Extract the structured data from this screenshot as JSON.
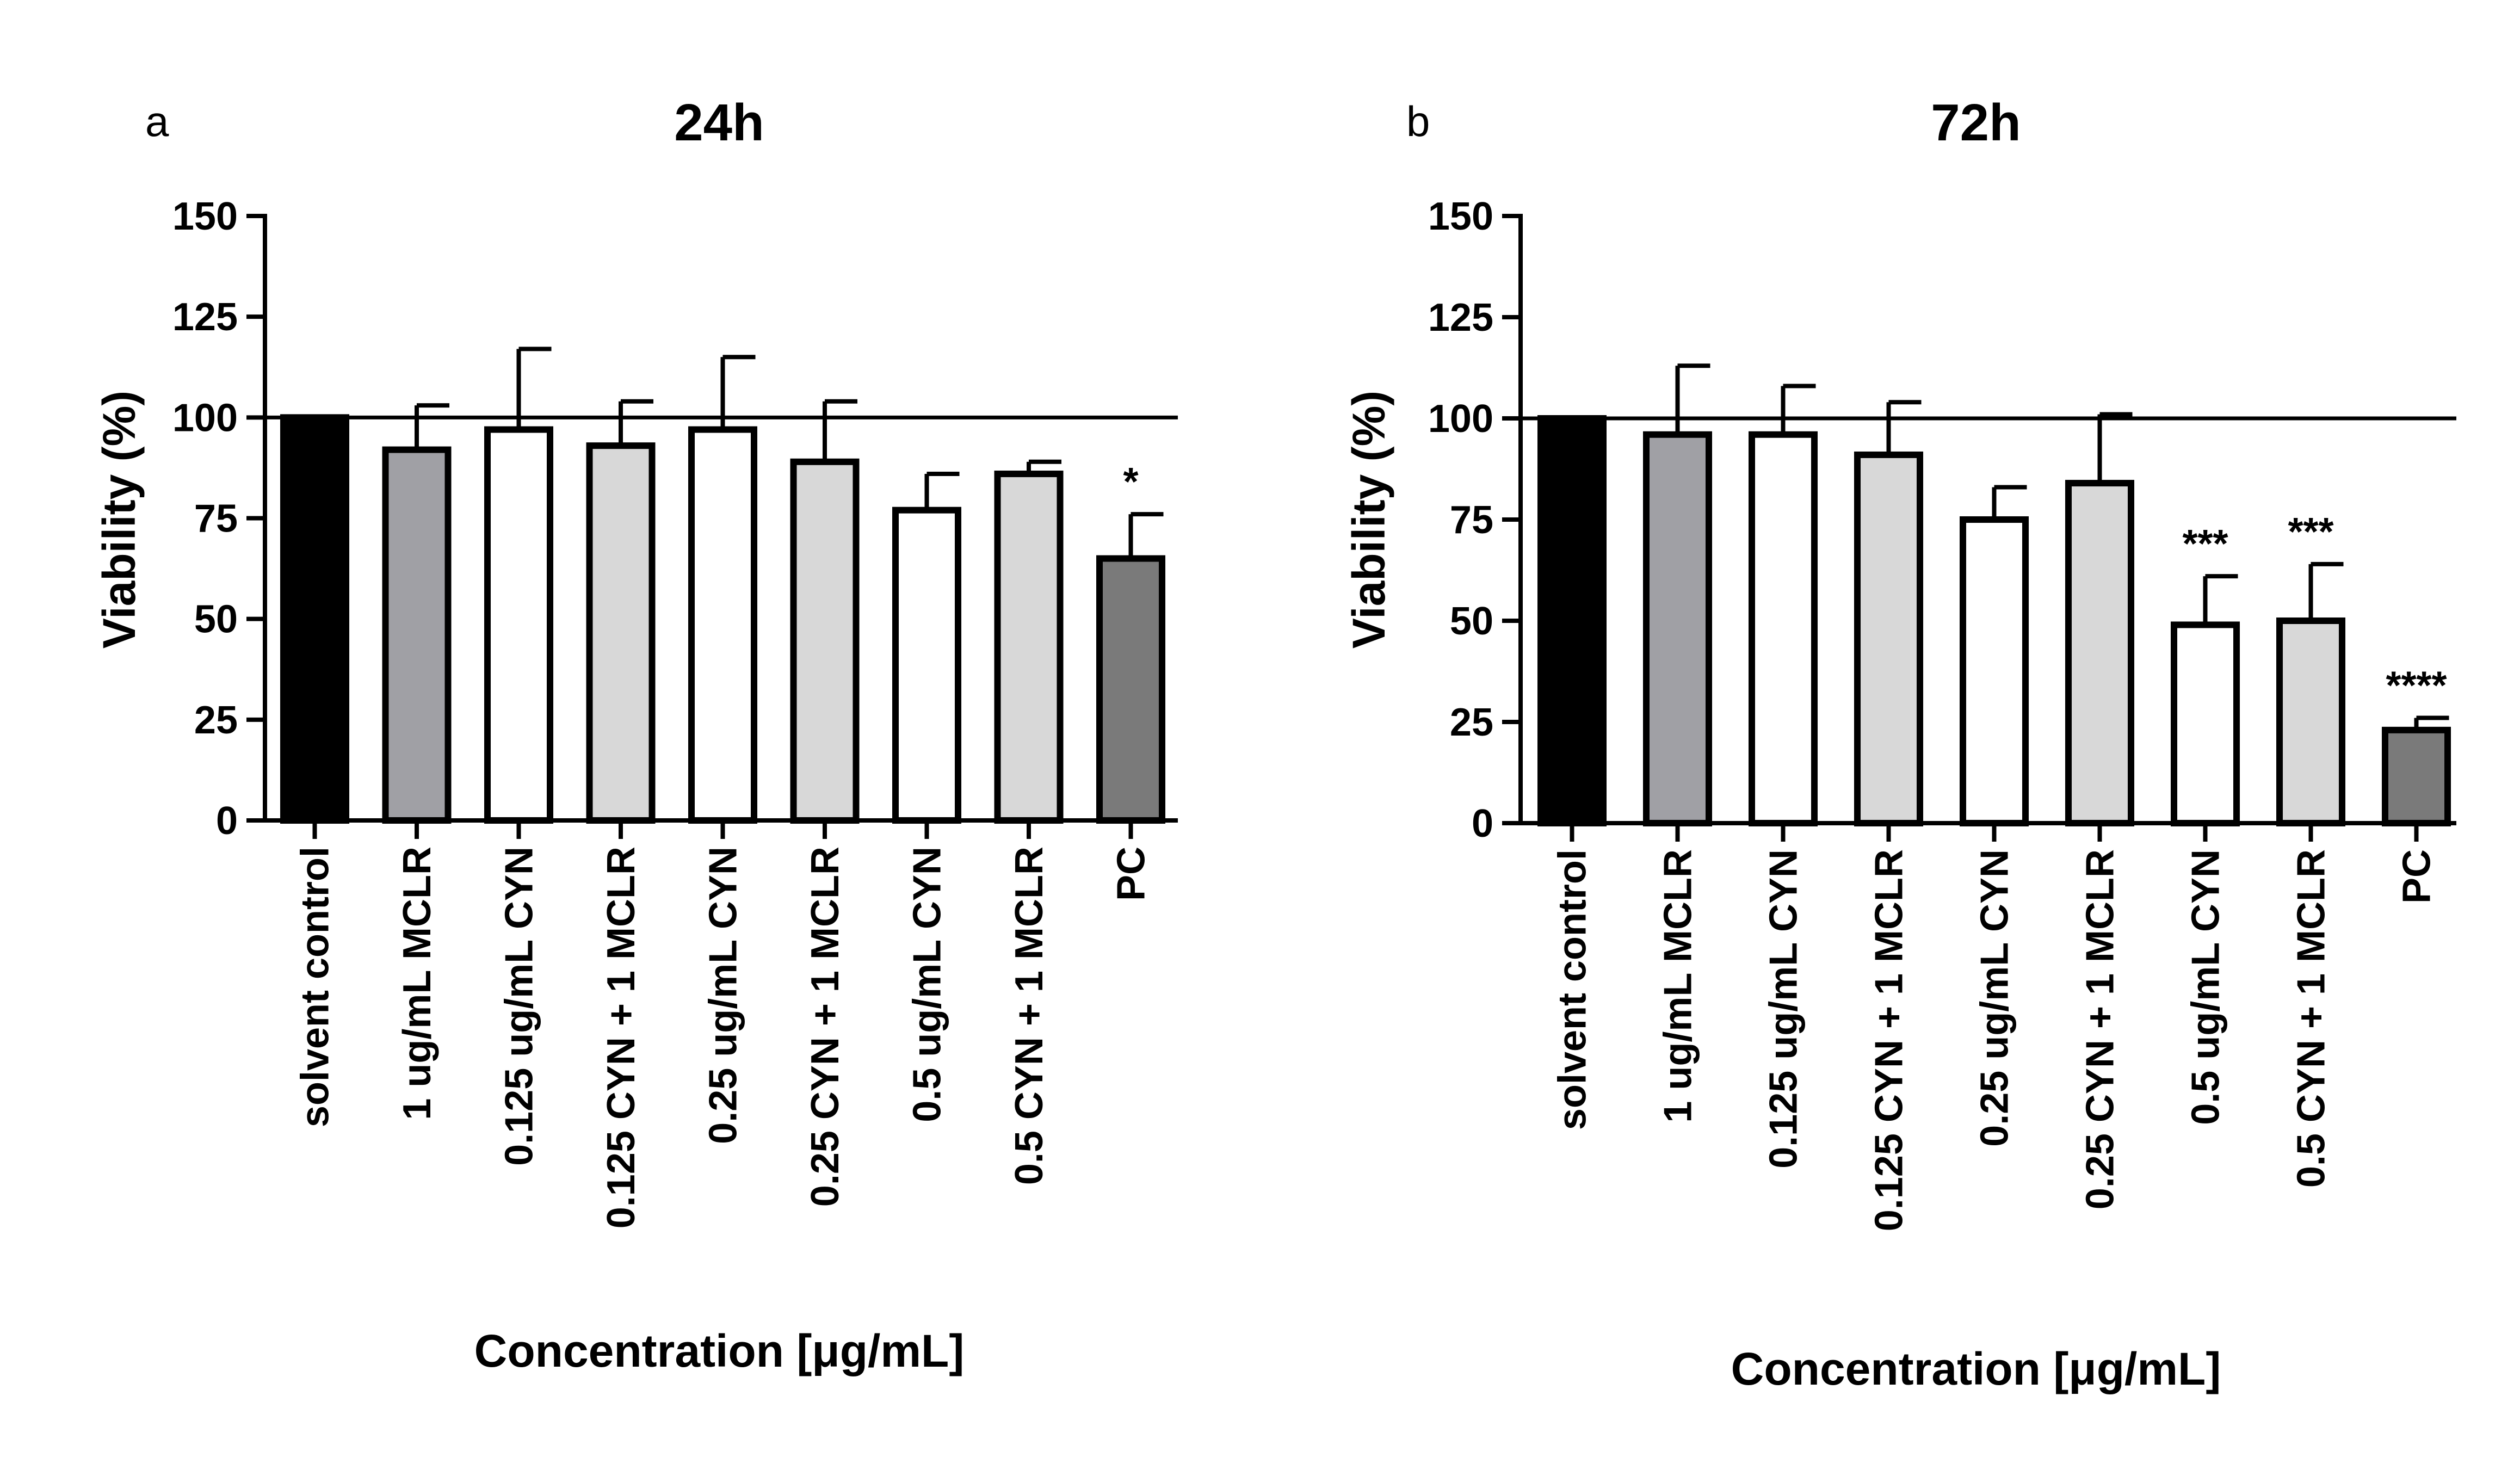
{
  "chart_data": [
    {
      "type": "bar",
      "panel_label": "a",
      "title": "24h",
      "xlabel": "Concentration [μg/mL]",
      "ylabel": "Viability (%)",
      "ylim": [
        0,
        150
      ],
      "yticks": [
        0,
        25,
        50,
        75,
        100,
        125,
        150
      ],
      "reference_line": 100,
      "grid": false,
      "categories": [
        "solvent control",
        "1 ug/mL MCLR",
        "0.125 ug/mL CYN",
        "0.125 CYN + 1 MCLR",
        "0.25 ug/mL CYN",
        "0.25 CYN + 1 MCLR",
        "0.5 ug/mL CYN",
        "0.5 CYN + 1 MCLR",
        "PC"
      ],
      "values": [
        100,
        92,
        97,
        93,
        97,
        89,
        77,
        86,
        65
      ],
      "errors": [
        0,
        11,
        20,
        11,
        18,
        15,
        9,
        3,
        11
      ],
      "significance": [
        "",
        "",
        "",
        "",
        "",
        "",
        "",
        "",
        "*"
      ],
      "colors": [
        "#000000",
        "#a0a0a5",
        "#ffffff",
        "#d8d8d8",
        "#ffffff",
        "#d8d8d8",
        "#ffffff",
        "#d8d8d8",
        "#7a7a7a"
      ]
    },
    {
      "type": "bar",
      "panel_label": "b",
      "title": "72h",
      "xlabel": "Concentration [μg/mL]",
      "ylabel": "Viability (%)",
      "ylim": [
        0,
        150
      ],
      "yticks": [
        0,
        25,
        50,
        75,
        100,
        125,
        150
      ],
      "reference_line": 100,
      "grid": false,
      "categories": [
        "solvent control",
        "1 ug/mL MCLR",
        "0.125 ug/mL CYN",
        "0.125 CYN + 1 MCLR",
        "0.25 ug/mL CYN",
        "0.25 CYN + 1 MCLR",
        "0.5 ug/mL CYN",
        "0.5 CYN + 1 MCLR",
        "PC"
      ],
      "values": [
        100,
        96,
        96,
        91,
        75,
        84,
        49,
        50,
        23
      ],
      "errors": [
        0,
        17,
        12,
        13,
        8,
        17,
        12,
        14,
        3
      ],
      "significance": [
        "",
        "",
        "",
        "",
        "",
        "",
        "***",
        "***",
        "****"
      ],
      "colors": [
        "#000000",
        "#a0a0a5",
        "#ffffff",
        "#d8d8d8",
        "#ffffff",
        "#d8d8d8",
        "#ffffff",
        "#d8d8d8",
        "#7a7a7a"
      ]
    }
  ]
}
